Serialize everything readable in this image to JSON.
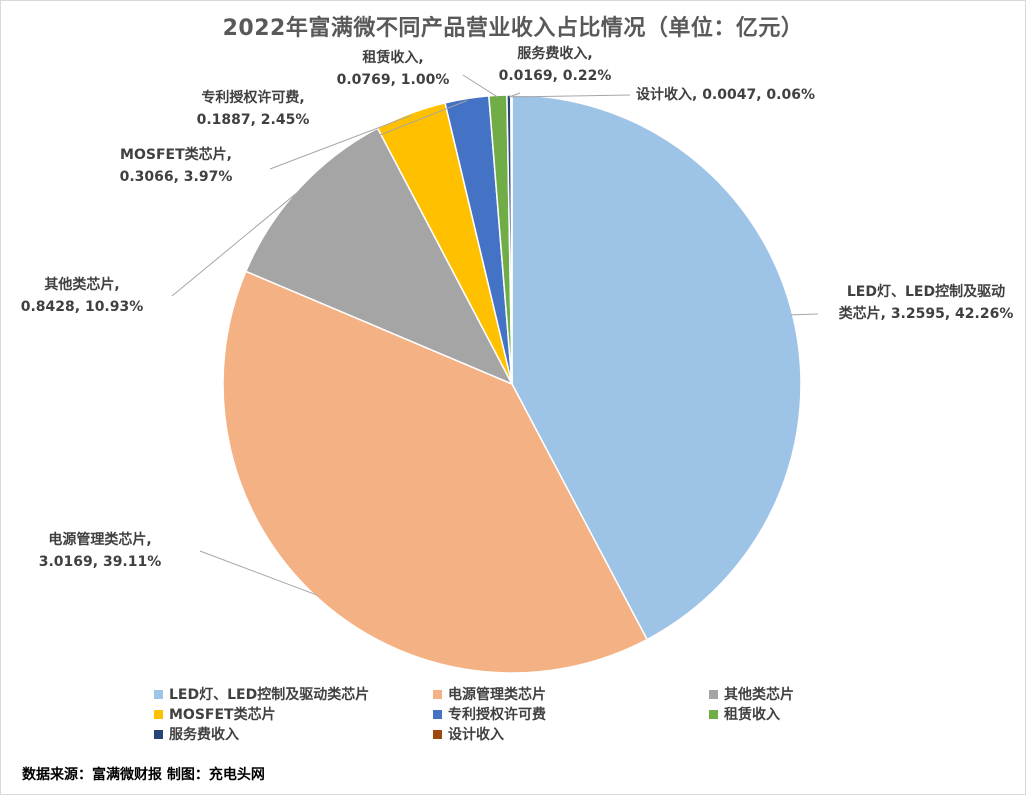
{
  "chart_data": {
    "type": "pie",
    "title": "2022年富满微不同产品营业收入占比情况（单位：亿元）",
    "slices": [
      {
        "label": "LED灯、LED控制及驱动类芯片",
        "value": 3.2595,
        "percent": "42.26%",
        "color": "#9DC3E6",
        "data_label_line1": "LED灯、LED控制及驱动",
        "data_label_line2": "类芯片, 3.2595, 42.26%"
      },
      {
        "label": "电源管理类芯片",
        "value": 3.0169,
        "percent": "39.11%",
        "color": "#F4B183",
        "data_label_line1": "电源管理类芯片,",
        "data_label_line2": "3.0169, 39.11%"
      },
      {
        "label": "其他类芯片",
        "value": 0.8428,
        "percent": "10.93%",
        "color": "#A5A5A5",
        "data_label_line1": "其他类芯片,",
        "data_label_line2": "0.8428, 10.93%"
      },
      {
        "label": "MOSFET类芯片",
        "value": 0.3066,
        "percent": "3.97%",
        "color": "#FFC000",
        "data_label_line1": "MOSFET类芯片,",
        "data_label_line2": "0.3066, 3.97%"
      },
      {
        "label": "专利授权许可费",
        "value": 0.1887,
        "percent": "2.45%",
        "color": "#4472C4",
        "data_label_line1": "专利授权许可费,",
        "data_label_line2": "0.1887, 2.45%"
      },
      {
        "label": "租赁收入",
        "value": 0.0769,
        "percent": "1.00%",
        "color": "#70AD47",
        "data_label_line1": "租赁收入,",
        "data_label_line2": "0.0769, 1.00%"
      },
      {
        "label": "服务费收入",
        "value": 0.0169,
        "percent": "0.22%",
        "color": "#264478",
        "data_label_line1": "服务费收入,",
        "data_label_line2": "0.0169, 0.22%"
      },
      {
        "label": "设计收入",
        "value": 0.0047,
        "percent": "0.06%",
        "color": "#9E480E",
        "data_label_line1": "设计收入, 0.0047, 0.06%",
        "data_label_line2": ""
      }
    ],
    "legend_position": "bottom"
  },
  "footer": {
    "source": "数据来源：富满微财报  制图：充电头网"
  }
}
